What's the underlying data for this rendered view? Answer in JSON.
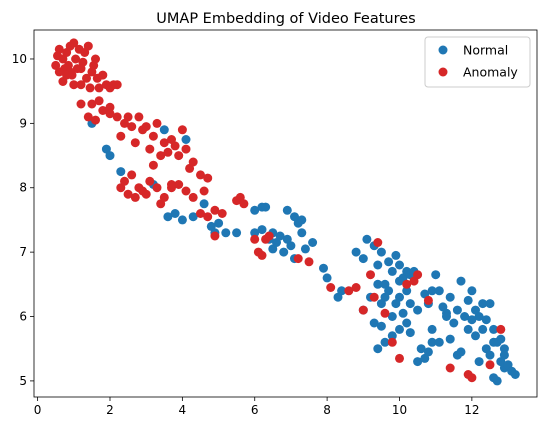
{
  "chart_data": {
    "type": "scatter",
    "title": "UMAP Embedding of Video Features",
    "xlabel": "",
    "ylabel": "",
    "xlim": [
      -0.1,
      13.8
    ],
    "ylim": [
      4.75,
      10.45
    ],
    "x_ticks": [
      0,
      2,
      4,
      6,
      8,
      10,
      12
    ],
    "y_ticks": [
      5,
      6,
      7,
      8,
      9,
      10
    ],
    "grid": false,
    "legend_position": "top-right",
    "series": [
      {
        "name": "Normal",
        "color": "#1f77b4",
        "points": [
          [
            1.5,
            9.0
          ],
          [
            1.9,
            8.6
          ],
          [
            2.0,
            8.5
          ],
          [
            2.3,
            8.25
          ],
          [
            3.2,
            8.05
          ],
          [
            3.5,
            8.9
          ],
          [
            3.6,
            7.55
          ],
          [
            3.8,
            7.6
          ],
          [
            4.0,
            7.5
          ],
          [
            4.1,
            8.75
          ],
          [
            4.3,
            7.55
          ],
          [
            4.6,
            7.75
          ],
          [
            4.8,
            7.4
          ],
          [
            4.9,
            7.3
          ],
          [
            5.0,
            7.45
          ],
          [
            5.2,
            7.3
          ],
          [
            5.5,
            7.3
          ],
          [
            6.0,
            7.65
          ],
          [
            6.2,
            7.7
          ],
          [
            6.3,
            7.7
          ],
          [
            6.0,
            7.3
          ],
          [
            6.2,
            7.35
          ],
          [
            6.4,
            7.2
          ],
          [
            6.5,
            7.3
          ],
          [
            6.7,
            7.25
          ],
          [
            6.9,
            7.2
          ],
          [
            7.2,
            7.45
          ],
          [
            7.3,
            7.3
          ],
          [
            7.0,
            7.1
          ],
          [
            6.5,
            7.05
          ],
          [
            6.8,
            7.0
          ],
          [
            7.1,
            6.9
          ],
          [
            7.4,
            7.05
          ],
          [
            7.6,
            7.15
          ],
          [
            6.9,
            7.65
          ],
          [
            7.1,
            7.55
          ],
          [
            7.3,
            7.5
          ],
          [
            6.6,
            7.15
          ],
          [
            7.9,
            6.75
          ],
          [
            8.0,
            6.6
          ],
          [
            8.3,
            6.3
          ],
          [
            8.4,
            6.4
          ],
          [
            8.8,
            7.0
          ],
          [
            9.0,
            6.9
          ],
          [
            9.1,
            7.2
          ],
          [
            9.3,
            7.1
          ],
          [
            9.4,
            6.8
          ],
          [
            9.5,
            7.0
          ],
          [
            9.7,
            6.85
          ],
          [
            9.8,
            6.7
          ],
          [
            9.9,
            6.95
          ],
          [
            10.0,
            6.8
          ],
          [
            10.1,
            6.6
          ],
          [
            10.2,
            6.7
          ],
          [
            10.3,
            6.65
          ],
          [
            10.4,
            6.7
          ],
          [
            9.0,
            6.1
          ],
          [
            9.2,
            6.3
          ],
          [
            9.4,
            6.5
          ],
          [
            9.5,
            6.2
          ],
          [
            9.6,
            6.3
          ],
          [
            9.7,
            6.4
          ],
          [
            9.8,
            6.0
          ],
          [
            9.9,
            6.2
          ],
          [
            10.0,
            6.3
          ],
          [
            10.1,
            6.05
          ],
          [
            10.2,
            6.4
          ],
          [
            10.3,
            6.2
          ],
          [
            10.5,
            6.1
          ],
          [
            10.7,
            6.35
          ],
          [
            10.8,
            6.2
          ],
          [
            10.9,
            6.4
          ],
          [
            11.1,
            6.4
          ],
          [
            11.2,
            6.15
          ],
          [
            11.4,
            6.3
          ],
          [
            11.5,
            5.9
          ],
          [
            11.6,
            6.1
          ],
          [
            11.7,
            6.55
          ],
          [
            11.8,
            6.0
          ],
          [
            11.9,
            6.25
          ],
          [
            12.0,
            6.4
          ],
          [
            12.1,
            6.1
          ],
          [
            12.2,
            6.0
          ],
          [
            12.3,
            6.2
          ],
          [
            12.4,
            5.95
          ],
          [
            12.5,
            6.2
          ],
          [
            12.6,
            5.8
          ],
          [
            12.7,
            5.6
          ],
          [
            12.8,
            5.65
          ],
          [
            12.9,
            5.5
          ],
          [
            9.3,
            5.9
          ],
          [
            9.5,
            5.85
          ],
          [
            9.6,
            5.6
          ],
          [
            9.8,
            5.7
          ],
          [
            10.0,
            5.8
          ],
          [
            10.2,
            5.9
          ],
          [
            10.3,
            5.75
          ],
          [
            10.5,
            5.3
          ],
          [
            10.6,
            5.5
          ],
          [
            10.7,
            5.35
          ],
          [
            10.8,
            5.45
          ],
          [
            10.9,
            5.6
          ],
          [
            11.1,
            5.6
          ],
          [
            11.0,
            6.65
          ],
          [
            11.3,
            6.05
          ],
          [
            11.4,
            5.65
          ],
          [
            11.6,
            5.4
          ],
          [
            11.7,
            5.45
          ],
          [
            11.9,
            5.8
          ],
          [
            12.0,
            5.95
          ],
          [
            12.1,
            5.7
          ],
          [
            12.2,
            5.3
          ],
          [
            12.3,
            5.8
          ],
          [
            12.4,
            5.5
          ],
          [
            12.5,
            5.4
          ],
          [
            12.6,
            5.6
          ],
          [
            12.7,
            5.0
          ],
          [
            12.8,
            5.3
          ],
          [
            12.9,
            5.2
          ],
          [
            13.0,
            5.25
          ],
          [
            13.1,
            5.15
          ],
          [
            13.2,
            5.1
          ],
          [
            12.9,
            5.4
          ],
          [
            12.6,
            5.05
          ],
          [
            10.0,
            6.55
          ],
          [
            9.6,
            6.5
          ],
          [
            11.3,
            6.0
          ],
          [
            10.9,
            5.8
          ],
          [
            9.4,
            5.5
          ],
          [
            10.4,
            6.65
          ]
        ]
      },
      {
        "name": "Anomaly",
        "color": "#d62728",
        "points": [
          [
            0.5,
            9.9
          ],
          [
            0.55,
            10.05
          ],
          [
            0.6,
            10.15
          ],
          [
            0.7,
            10.0
          ],
          [
            0.75,
            9.85
          ],
          [
            0.8,
            10.1
          ],
          [
            0.85,
            9.9
          ],
          [
            0.9,
            10.2
          ],
          [
            0.95,
            9.75
          ],
          [
            1.0,
            10.25
          ],
          [
            1.05,
            10.0
          ],
          [
            1.1,
            9.85
          ],
          [
            1.15,
            10.15
          ],
          [
            1.2,
            9.6
          ],
          [
            1.25,
            9.95
          ],
          [
            1.3,
            10.1
          ],
          [
            1.35,
            9.7
          ],
          [
            1.4,
            10.2
          ],
          [
            1.45,
            9.55
          ],
          [
            1.5,
            9.8
          ],
          [
            1.55,
            9.9
          ],
          [
            1.6,
            10.0
          ],
          [
            1.65,
            9.7
          ],
          [
            1.7,
            9.55
          ],
          [
            1.8,
            9.75
          ],
          [
            1.9,
            9.6
          ],
          [
            2.0,
            9.55
          ],
          [
            2.1,
            9.6
          ],
          [
            2.2,
            9.6
          ],
          [
            0.6,
            9.8
          ],
          [
            0.7,
            9.65
          ],
          [
            0.9,
            9.8
          ],
          [
            1.0,
            9.6
          ],
          [
            1.2,
            9.3
          ],
          [
            1.4,
            9.1
          ],
          [
            1.5,
            9.3
          ],
          [
            1.6,
            9.05
          ],
          [
            1.7,
            9.35
          ],
          [
            1.8,
            9.2
          ],
          [
            2.0,
            9.25
          ],
          [
            2.2,
            9.1
          ],
          [
            2.3,
            8.8
          ],
          [
            2.4,
            9.0
          ],
          [
            2.5,
            9.1
          ],
          [
            2.6,
            8.95
          ],
          [
            2.7,
            8.7
          ],
          [
            2.8,
            9.1
          ],
          [
            2.9,
            8.9
          ],
          [
            3.0,
            8.95
          ],
          [
            3.1,
            8.6
          ],
          [
            3.2,
            8.8
          ],
          [
            3.3,
            9.0
          ],
          [
            3.4,
            8.5
          ],
          [
            3.5,
            8.7
          ],
          [
            3.6,
            8.55
          ],
          [
            3.7,
            8.75
          ],
          [
            3.8,
            8.65
          ],
          [
            3.9,
            8.5
          ],
          [
            4.0,
            8.9
          ],
          [
            4.1,
            8.6
          ],
          [
            4.2,
            8.3
          ],
          [
            4.3,
            8.4
          ],
          [
            4.5,
            8.2
          ],
          [
            4.6,
            7.95
          ],
          [
            4.7,
            8.15
          ],
          [
            2.3,
            8.0
          ],
          [
            2.4,
            8.1
          ],
          [
            2.5,
            7.9
          ],
          [
            2.6,
            8.2
          ],
          [
            2.7,
            7.85
          ],
          [
            2.8,
            8.0
          ],
          [
            2.9,
            7.95
          ],
          [
            3.0,
            7.9
          ],
          [
            3.1,
            8.1
          ],
          [
            3.2,
            8.35
          ],
          [
            3.3,
            8.0
          ],
          [
            3.4,
            7.75
          ],
          [
            3.5,
            7.85
          ],
          [
            3.7,
            8.0
          ],
          [
            3.9,
            8.05
          ],
          [
            4.1,
            7.95
          ],
          [
            4.3,
            7.85
          ],
          [
            4.5,
            7.6
          ],
          [
            4.7,
            7.55
          ],
          [
            4.9,
            7.65
          ],
          [
            5.1,
            7.6
          ],
          [
            5.5,
            7.8
          ],
          [
            5.6,
            7.85
          ],
          [
            5.7,
            7.75
          ],
          [
            4.9,
            7.25
          ],
          [
            6.0,
            7.2
          ],
          [
            6.1,
            7.0
          ],
          [
            6.2,
            6.95
          ],
          [
            6.3,
            7.2
          ],
          [
            7.2,
            6.9
          ],
          [
            7.5,
            6.85
          ],
          [
            8.1,
            6.45
          ],
          [
            8.6,
            6.4
          ],
          [
            8.8,
            6.45
          ],
          [
            9.0,
            6.1
          ],
          [
            9.2,
            6.65
          ],
          [
            9.3,
            6.3
          ],
          [
            9.4,
            7.15
          ],
          [
            9.6,
            6.05
          ],
          [
            9.8,
            5.6
          ],
          [
            10.2,
            6.5
          ],
          [
            10.4,
            6.55
          ],
          [
            10.8,
            6.25
          ],
          [
            10.0,
            5.35
          ],
          [
            11.4,
            5.2
          ],
          [
            11.9,
            5.1
          ],
          [
            12.0,
            5.05
          ],
          [
            12.5,
            5.25
          ],
          [
            12.8,
            5.8
          ],
          [
            10.5,
            6.65
          ],
          [
            2.0,
            9.15
          ],
          [
            1.2,
            9.85
          ],
          [
            0.8,
            9.75
          ],
          [
            3.7,
            8.05
          ],
          [
            6.4,
            7.25
          ]
        ]
      }
    ]
  }
}
